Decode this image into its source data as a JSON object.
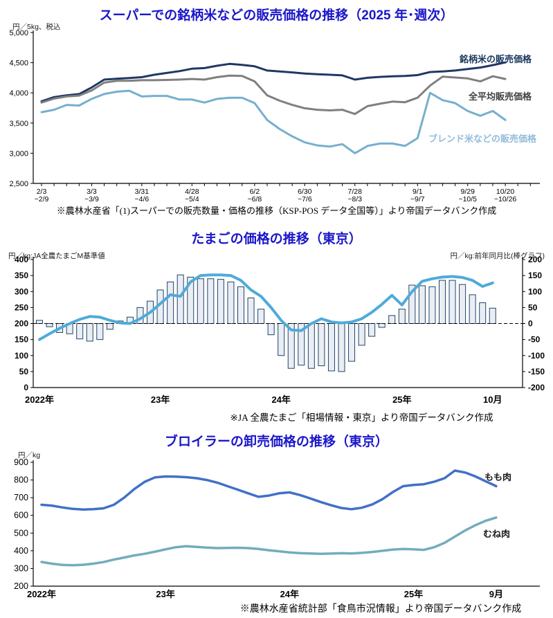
{
  "title_color": "#1a16c9",
  "chart_data": [
    {
      "type": "line",
      "id": "rice",
      "title": "スーパーでの銘柄米などの販売価格の推移（2025 年･週次）",
      "unit_label": "円／5kg、税込",
      "footnote": "※農林水産省「(1)スーパーでの販売数量・価格の推移（KSP-POS データ全国等）」より帝国データバンク作成",
      "ylim": [
        2500,
        5000
      ],
      "yticks": [
        5000,
        4500,
        4000,
        3500,
        3000,
        2500
      ],
      "n_points": 38,
      "x_tick_labels": [
        {
          "index": 0,
          "line1": "2/3",
          "line2": "~2/9"
        },
        {
          "index": 4,
          "line1": "3/3",
          "line2": "~3/9"
        },
        {
          "index": 8,
          "line1": "3/31",
          "line2": "~4/6"
        },
        {
          "index": 12,
          "line1": "4/28",
          "line2": "~5/4"
        },
        {
          "index": 17,
          "line1": "6/2",
          "line2": "~6/8"
        },
        {
          "index": 21,
          "line1": "6/30",
          "line2": "~7/6"
        },
        {
          "index": 25,
          "line1": "7/28",
          "line2": "~8/3"
        },
        {
          "index": 30,
          "line1": "9/1",
          "line2": "~9/7"
        },
        {
          "index": 34,
          "line1": "9/29",
          "line2": "~10/5"
        },
        {
          "index": 37,
          "line1": "10/20",
          "line2": "~10/26"
        }
      ],
      "series": [
        {
          "name": "銘柄米の販売価格",
          "color": "#1F3864",
          "label_color": "#17365D",
          "values": [
            3860,
            3930,
            3960,
            3980,
            4090,
            4220,
            4235,
            4245,
            4260,
            4300,
            4330,
            4360,
            4400,
            4410,
            4450,
            4480,
            4465,
            4440,
            4370,
            4355,
            4340,
            4320,
            4310,
            4300,
            4290,
            4220,
            4250,
            4265,
            4275,
            4280,
            4295,
            4345,
            4355,
            4370,
            4395,
            4420,
            4460,
            4505
          ]
        },
        {
          "name": "全平均販売価格",
          "color": "#7F7F7F",
          "label_color": "#3F3F3F",
          "values": [
            3840,
            3905,
            3940,
            3955,
            4040,
            4170,
            4200,
            4200,
            4210,
            4210,
            4215,
            4220,
            4230,
            4220,
            4260,
            4285,
            4280,
            4190,
            3960,
            3870,
            3800,
            3745,
            3720,
            3710,
            3720,
            3650,
            3780,
            3820,
            3855,
            3845,
            3920,
            4120,
            4270,
            4255,
            4240,
            4190,
            4275,
            4230
          ]
        },
        {
          "name": "ブレンド米などの販売価格",
          "color": "#76AFCE",
          "label_color": "#94BCD9",
          "values": [
            3680,
            3720,
            3800,
            3790,
            3900,
            3980,
            4020,
            4035,
            3940,
            3950,
            3950,
            3890,
            3890,
            3840,
            3900,
            3920,
            3920,
            3830,
            3550,
            3400,
            3280,
            3180,
            3130,
            3110,
            3150,
            3000,
            3120,
            3160,
            3160,
            3120,
            3250,
            4000,
            3880,
            3830,
            3700,
            3620,
            3700,
            3550
          ]
        }
      ]
    },
    {
      "type": "line+bar",
      "id": "egg",
      "title": "たまごの価格の推移（東京）",
      "left_axis_label": "円／kg:JA全農たまごM基準値",
      "right_axis_label": "円／kg:前年同月比(棒グラフ)",
      "footnote": "※JA 全農たまご「相場情報・東京」より帝国データバンク作成",
      "left_ylim": [
        0,
        400
      ],
      "right_ylim": [
        -200,
        200
      ],
      "left_yticks": [
        400,
        350,
        300,
        250,
        200,
        150,
        100,
        50,
        0
      ],
      "right_yticks": [
        200,
        150,
        100,
        50,
        0,
        -50,
        -100,
        -150,
        -200
      ],
      "x_tick_labels": [
        {
          "label": "2022年",
          "month_index": 0
        },
        {
          "label": "23年",
          "month_index": 12
        },
        {
          "label": "24年",
          "month_index": 24
        },
        {
          "label": "25年",
          "month_index": 36
        },
        {
          "label": "10月",
          "month_index": 45
        }
      ],
      "line_series": {
        "name": "たまご価格（JA全農たまごM基準値）",
        "axis": "left",
        "color": "#4FAAD9",
        "values": [
          150,
          168,
          185,
          200,
          213,
          222,
          220,
          210,
          202,
          200,
          215,
          235,
          262,
          290,
          285,
          330,
          350,
          352,
          352,
          350,
          335,
          305,
          285,
          250,
          210,
          180,
          178,
          200,
          215,
          205,
          202,
          205,
          215,
          235,
          260,
          288,
          258,
          300,
          332,
          340,
          345,
          347,
          344,
          335,
          316,
          327
        ]
      },
      "bar_series": {
        "name": "前年同月比",
        "axis": "right",
        "fill": "#EAEDF4",
        "stroke": "#1F4466",
        "values": [
          10,
          -10,
          -28,
          -32,
          -48,
          -55,
          -50,
          -18,
          8,
          20,
          50,
          70,
          105,
          130,
          152,
          145,
          140,
          140,
          138,
          130,
          115,
          80,
          45,
          -35,
          -100,
          -140,
          -130,
          -140,
          -132,
          -148,
          -150,
          -118,
          -68,
          -40,
          -12,
          25,
          45,
          120,
          118,
          115,
          135,
          135,
          122,
          90,
          65,
          48
        ]
      }
    },
    {
      "type": "line",
      "id": "broiler",
      "title": "ブロイラーの卸売価格の推移（東京）",
      "unit_label": "円／kg",
      "footnote": "※農林水産省統計部「食鳥市況情報」より帝国データバンク作成",
      "ylim": [
        200,
        900
      ],
      "yticks": [
        900,
        800,
        700,
        600,
        500,
        400,
        300,
        200
      ],
      "x_tick_labels": [
        {
          "label": "2022年",
          "month_index": 0
        },
        {
          "label": "23年",
          "month_index": 12
        },
        {
          "label": "24年",
          "month_index": 24
        },
        {
          "label": "25年",
          "month_index": 36
        },
        {
          "label": "9月",
          "month_index": 44
        }
      ],
      "series": [
        {
          "name": "もも肉",
          "color": "#4170C7",
          "label_color": "#1a1a1a",
          "values": [
            660,
            655,
            645,
            637,
            633,
            635,
            640,
            660,
            700,
            750,
            790,
            815,
            820,
            819,
            816,
            810,
            800,
            785,
            765,
            745,
            725,
            705,
            712,
            725,
            730,
            715,
            696,
            676,
            658,
            642,
            635,
            643,
            662,
            692,
            732,
            765,
            772,
            776,
            790,
            810,
            853,
            842,
            820,
            792,
            765
          ]
        },
        {
          "name": "むね肉",
          "color": "#72ACBD",
          "label_color": "#1a1a1a",
          "values": [
            337,
            327,
            320,
            318,
            321,
            327,
            336,
            350,
            362,
            374,
            383,
            395,
            408,
            420,
            426,
            422,
            418,
            415,
            416,
            417,
            415,
            410,
            403,
            397,
            391,
            387,
            385,
            383,
            384,
            386,
            385,
            388,
            393,
            400,
            407,
            410,
            408,
            405,
            420,
            445,
            480,
            515,
            545,
            570,
            588
          ]
        }
      ]
    }
  ]
}
